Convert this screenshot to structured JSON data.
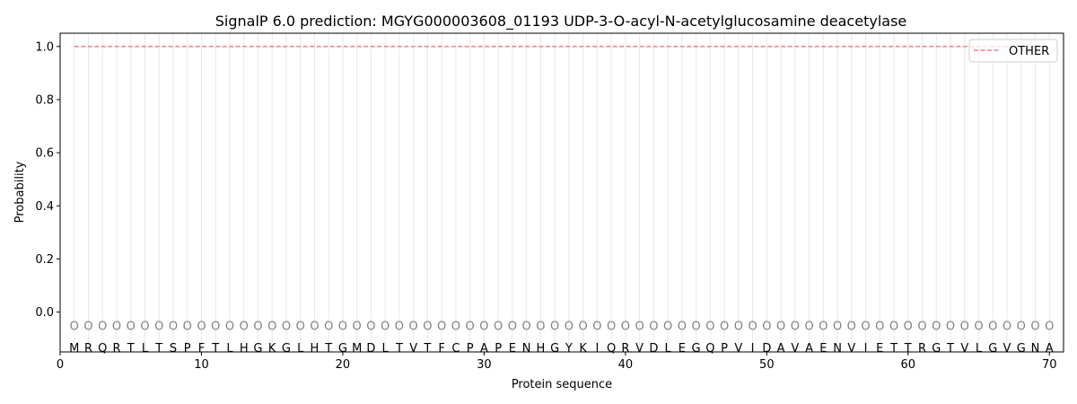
{
  "chart_data": {
    "type": "line",
    "title": "SignalP 6.0 prediction: MGYG000003608_01193 UDP-3-O-acyl-N-acetylglucosamine deacetylase",
    "xlabel": "Protein sequence",
    "ylabel": "Probability",
    "xlim": [
      0,
      71
    ],
    "ylim": [
      -0.15,
      1.05
    ],
    "xticks": [
      0,
      10,
      20,
      30,
      40,
      50,
      60,
      70
    ],
    "yticks": [
      "0.0",
      "0.2",
      "0.4",
      "0.6",
      "0.8",
      "1.0"
    ],
    "ytick_values": [
      0,
      0.2,
      0.4,
      0.6,
      0.8,
      1.0
    ],
    "grid": "vertical lines at each residue",
    "legend_position": "top-right",
    "sequence": [
      "M",
      "R",
      "Q",
      "R",
      "T",
      "L",
      "T",
      "S",
      "P",
      "F",
      "T",
      "L",
      "H",
      "G",
      "K",
      "G",
      "L",
      "H",
      "T",
      "G",
      "M",
      "D",
      "L",
      "T",
      "V",
      "T",
      "F",
      "C",
      "P",
      "A",
      "P",
      "E",
      "N",
      "H",
      "G",
      "Y",
      "K",
      "I",
      "Q",
      "R",
      "V",
      "D",
      "L",
      "E",
      "G",
      "Q",
      "P",
      "V",
      "I",
      "D",
      "A",
      "V",
      "A",
      "E",
      "N",
      "V",
      "I",
      "E",
      "T",
      "T",
      "R",
      "G",
      "T",
      "V",
      "L",
      "G",
      "V",
      "G",
      "N",
      "A"
    ],
    "predicted_label": "O",
    "series": [
      {
        "name": "OTHER",
        "color": "#f08080",
        "style": "dashed",
        "x_range": [
          1,
          70
        ],
        "value": 1.0
      }
    ]
  }
}
